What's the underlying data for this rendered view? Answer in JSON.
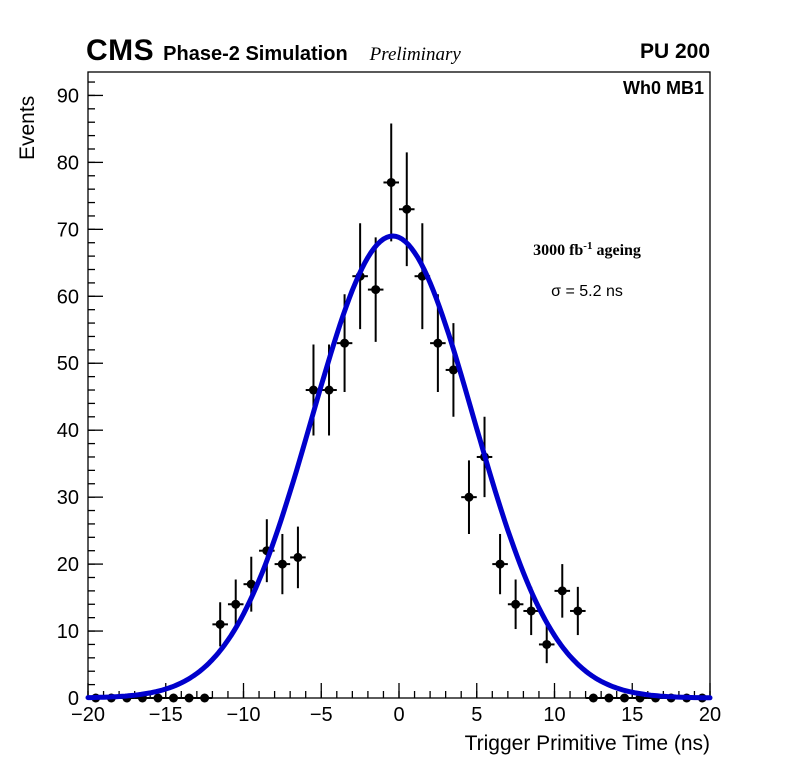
{
  "page": {
    "background": "#ffffff"
  },
  "chart_data": {
    "type": "scatter",
    "header": {
      "experiment": "CMS",
      "subtitle": "Phase-2 Simulation",
      "status": "Preliminary",
      "right_label": "PU 200"
    },
    "region_label": "Wh0 MB1",
    "lumi_annotation": {
      "before_sup": "3000 fb",
      "sup": "-1",
      "after_sup": " ageing"
    },
    "sigma_annotation": "σ = 5.2 ns",
    "xlabel": "Trigger Primitive Time (ns)",
    "ylabel": "Events",
    "xlim": [
      -20,
      20
    ],
    "ylim": [
      0,
      93.5
    ],
    "x_ticks": [
      -20,
      -15,
      -10,
      -5,
      0,
      5,
      10,
      15,
      20
    ],
    "x_tick_labels": [
      "−20",
      "−15",
      "−10",
      "−5",
      "0",
      "5",
      "10",
      "15",
      "20"
    ],
    "x_minor_step": 1,
    "y_ticks": [
      0,
      10,
      20,
      30,
      40,
      50,
      60,
      70,
      80,
      90
    ],
    "y_tick_labels": [
      "0",
      "10",
      "20",
      "30",
      "40",
      "50",
      "60",
      "70",
      "80",
      "90"
    ],
    "y_minor_step": 2,
    "grid": false,
    "legend": null,
    "x_err": 0.5,
    "marker": {
      "color": "#000000",
      "radius": 4.5
    },
    "fit": {
      "type": "gaussian",
      "amplitude": 69,
      "mean": -0.4,
      "sigma": 5.2,
      "color": "#0000cc",
      "line_width": 5
    },
    "points": [
      [
        -19.5,
        0,
        0
      ],
      [
        -18.5,
        0,
        0
      ],
      [
        -17.5,
        0,
        0
      ],
      [
        -16.5,
        0,
        0
      ],
      [
        -15.5,
        0,
        0
      ],
      [
        -14.5,
        0,
        0
      ],
      [
        -13.5,
        0,
        0
      ],
      [
        -12.5,
        0,
        0
      ],
      [
        -11.5,
        11,
        3.3
      ],
      [
        -10.5,
        14,
        3.7
      ],
      [
        -9.5,
        17,
        4.1
      ],
      [
        -8.5,
        22,
        4.7
      ],
      [
        -7.5,
        20,
        4.5
      ],
      [
        -6.5,
        21,
        4.6
      ],
      [
        -5.5,
        46,
        6.8
      ],
      [
        -4.5,
        46,
        6.8
      ],
      [
        -3.5,
        53,
        7.3
      ],
      [
        -2.5,
        63,
        7.9
      ],
      [
        -1.5,
        61,
        7.8
      ],
      [
        -0.5,
        77,
        8.8
      ],
      [
        0.5,
        73,
        8.5
      ],
      [
        1.5,
        63,
        7.9
      ],
      [
        2.5,
        53,
        7.3
      ],
      [
        3.5,
        49,
        7.0
      ],
      [
        4.5,
        30,
        5.5
      ],
      [
        5.5,
        36,
        6.0
      ],
      [
        6.5,
        20,
        4.5
      ],
      [
        7.5,
        14,
        3.7
      ],
      [
        8.5,
        13,
        3.6
      ],
      [
        9.5,
        8,
        2.8
      ],
      [
        10.5,
        16,
        4.0
      ],
      [
        11.5,
        13,
        3.6
      ],
      [
        12.5,
        0,
        0
      ],
      [
        13.5,
        0,
        0
      ],
      [
        14.5,
        0,
        0
      ],
      [
        15.5,
        0,
        0
      ],
      [
        16.5,
        0,
        0
      ],
      [
        17.5,
        0,
        0
      ],
      [
        18.5,
        0,
        0
      ],
      [
        19.5,
        0,
        0
      ]
    ]
  }
}
